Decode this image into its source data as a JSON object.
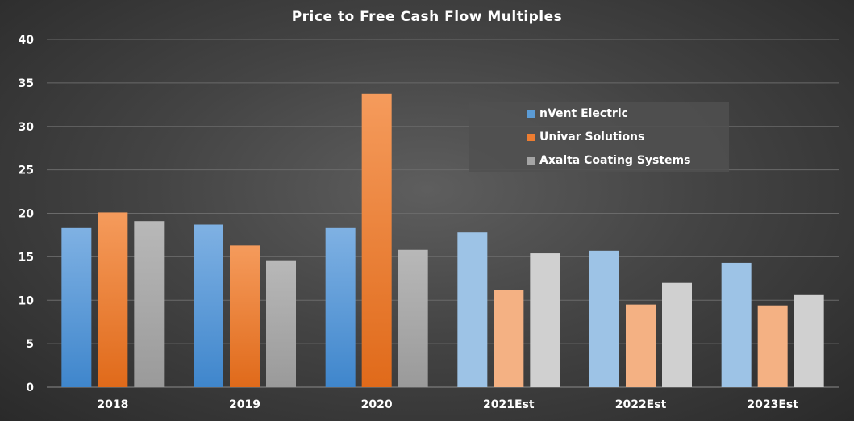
{
  "chart_data": {
    "type": "bar",
    "title": "Price to Free Cash Flow Multiples",
    "categories": [
      "2018",
      "2019",
      "2020",
      "2021Est",
      "2022Est",
      "2023Est"
    ],
    "estimate_categories": [
      "2021Est",
      "2022Est",
      "2023Est"
    ],
    "ylim": [
      0,
      40
    ],
    "yticks": [
      "0",
      "5",
      "10",
      "15",
      "20",
      "25",
      "30",
      "35",
      "40"
    ],
    "grid": true,
    "legend_position": "top-right",
    "series": [
      {
        "name": "nVent Electric",
        "color": "#5b9bd5",
        "estimate_color": "#9dc3e6",
        "values": [
          18.3,
          18.7,
          18.3,
          17.8,
          15.7,
          14.3
        ]
      },
      {
        "name": "Univar Solutions",
        "color": "#ed7d31",
        "estimate_color": "#f4b183",
        "values": [
          20.1,
          16.3,
          33.8,
          11.2,
          9.5,
          9.4
        ]
      },
      {
        "name": "Axalta Coating Systems",
        "color": "#a5a5a5",
        "estimate_color": "#d0d0d0",
        "values": [
          19.1,
          14.6,
          15.8,
          15.4,
          12.0,
          10.6
        ]
      }
    ]
  }
}
